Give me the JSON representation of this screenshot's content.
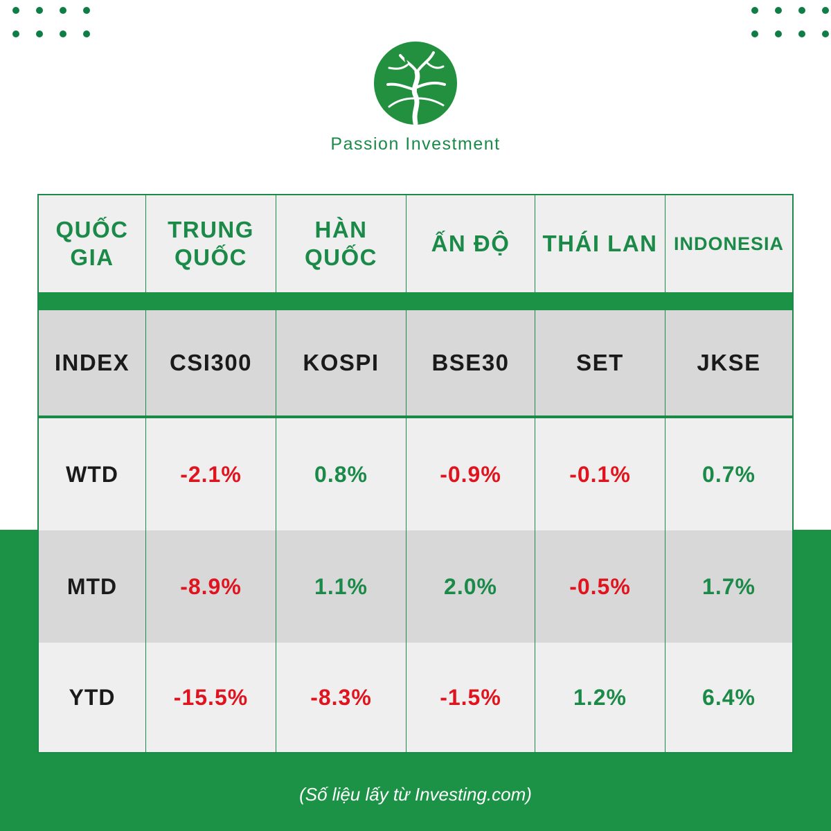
{
  "brand": {
    "name": "Passion Investment",
    "accent": "#1b8a48",
    "negative": "#e0141e"
  },
  "table": {
    "header": [
      "QUỐC GIA",
      "TRUNG QUỐC",
      "HÀN QUỐC",
      "ẤN ĐỘ",
      "THÁI LAN",
      "INDONESIA"
    ],
    "index": [
      "INDEX",
      "CSI300",
      "KOSPI",
      "BSE30",
      "SET",
      "JKSE"
    ],
    "rows": [
      {
        "label": "WTD",
        "values": [
          "-2.1%",
          "0.8%",
          "-0.9%",
          "-0.1%",
          "0.7%"
        ]
      },
      {
        "label": "MTD",
        "values": [
          "-8.9%",
          "1.1%",
          "2.0%",
          "-0.5%",
          "1.7%"
        ]
      },
      {
        "label": "YTD",
        "values": [
          "-15.5%",
          "-8.3%",
          "-1.5%",
          "1.2%",
          "6.4%"
        ]
      }
    ]
  },
  "source": "(Số liệu lấy từ Investing.com)"
}
